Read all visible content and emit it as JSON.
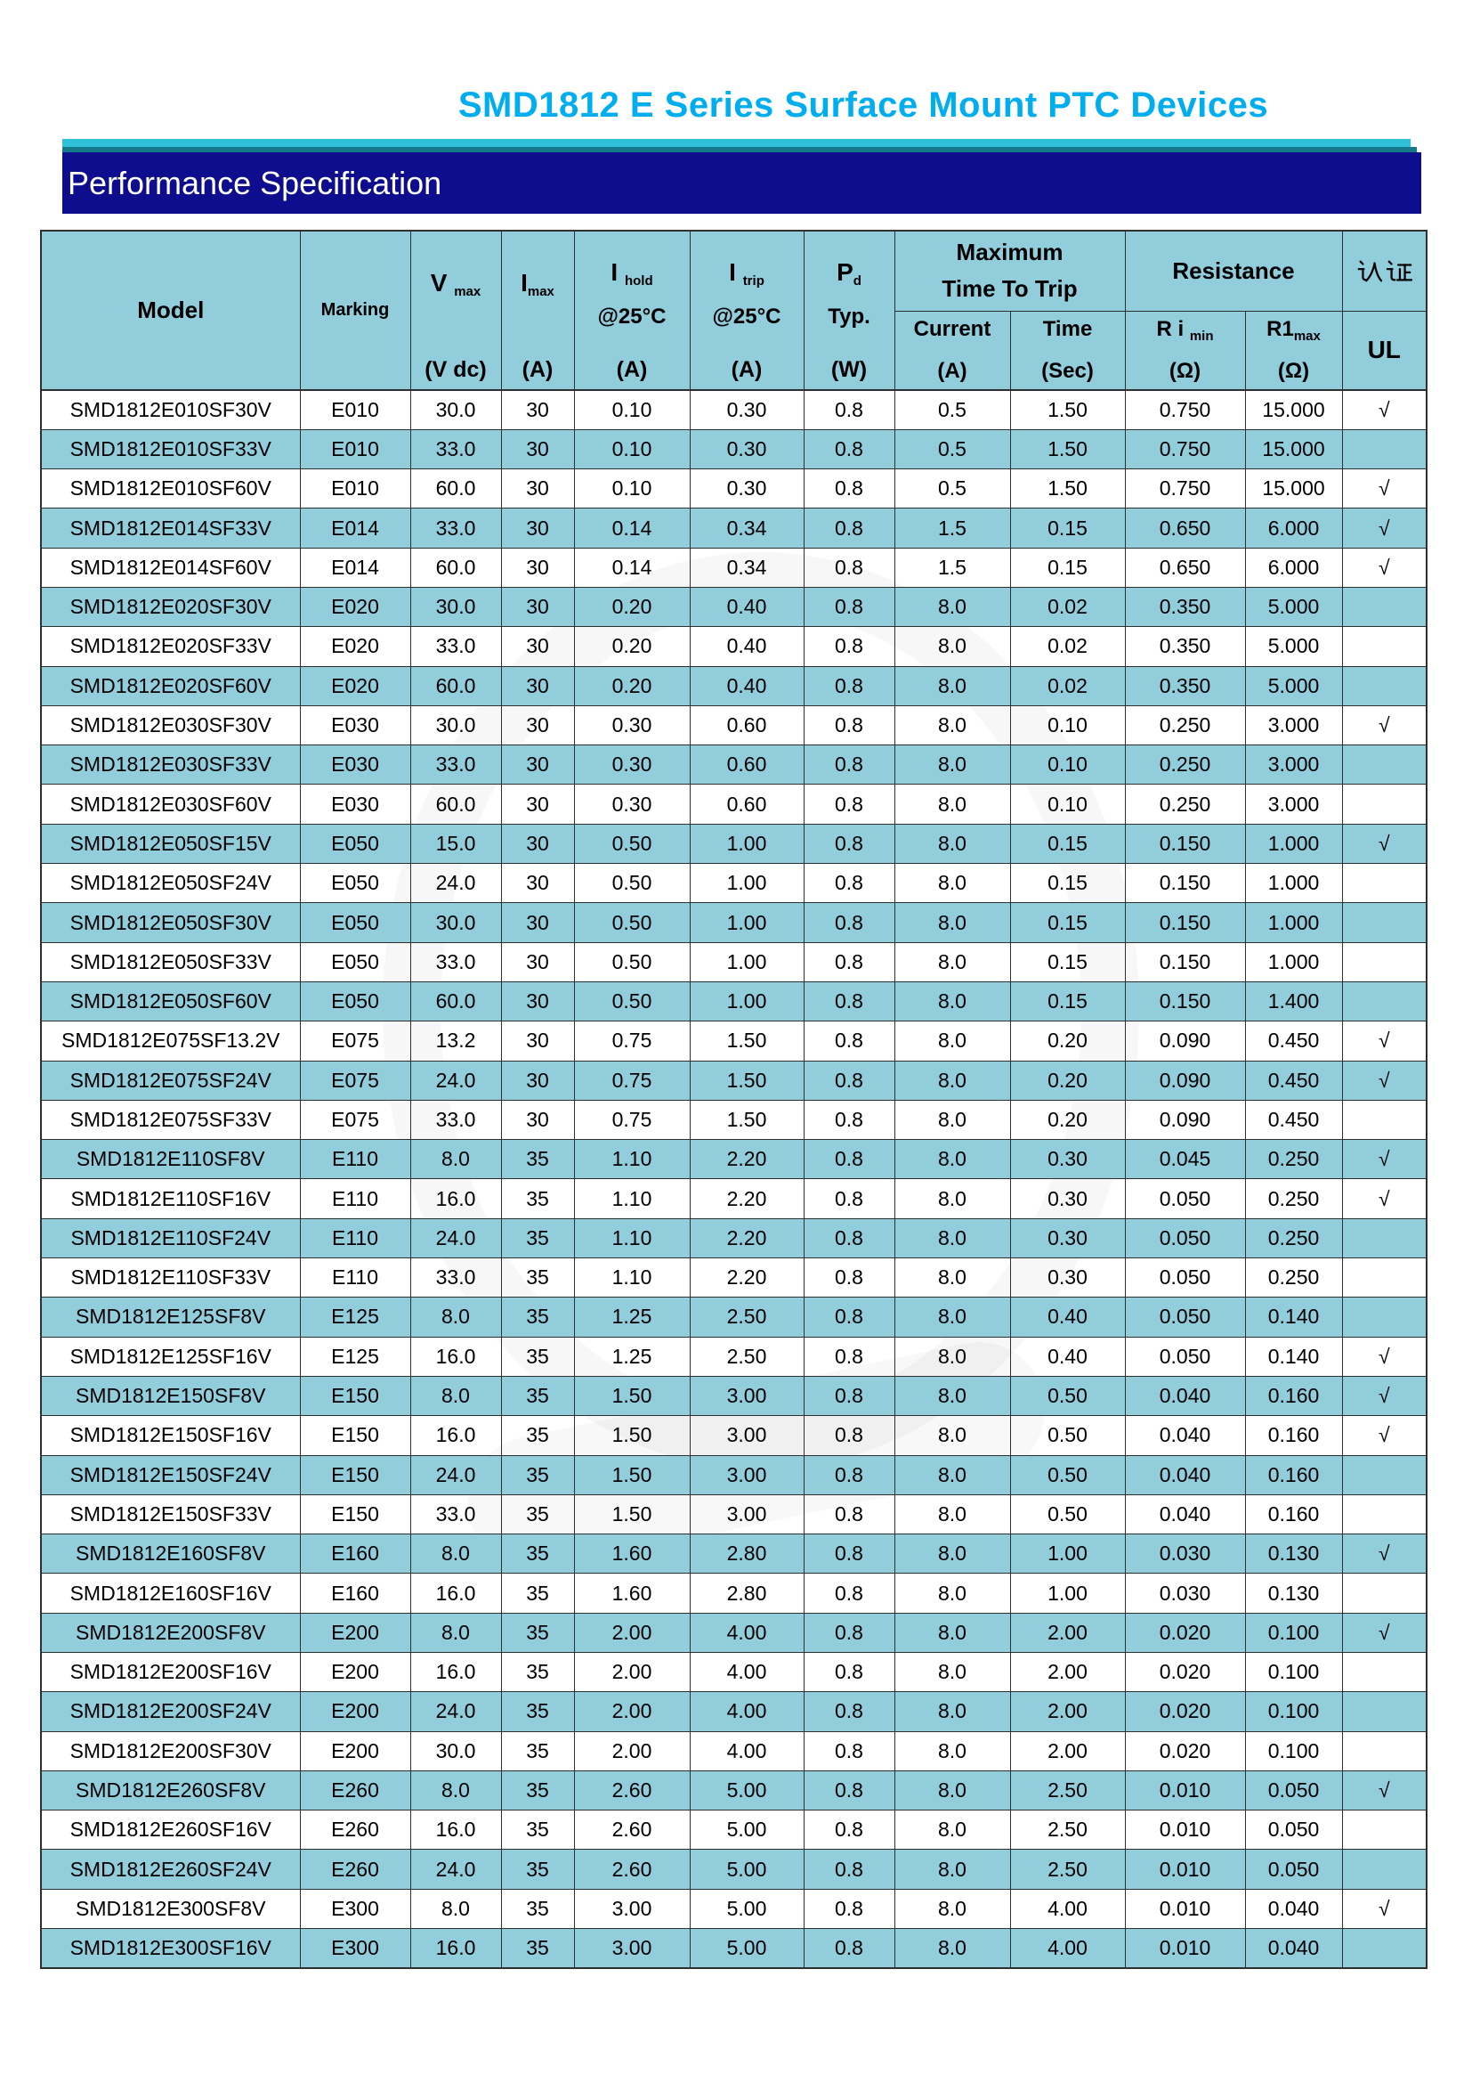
{
  "page": {
    "title": "SMD1812 E Series Surface Mount PTC Devices",
    "section_title": "Performance Specification"
  },
  "colors": {
    "title_cyan": "#00AEEF",
    "banner_navy": "#0D0D8E",
    "accent_bar_cyan": "#2FBFD8",
    "accent_bar_teal": "#15798A",
    "row_alt_blue": "#92CDDC",
    "row_white": "#FFFFFF",
    "grid_line": "#2F2F2F"
  },
  "table": {
    "headers": {
      "model": "Model",
      "marking": "Marking",
      "vmax": {
        "main": "V",
        "sub": "max",
        "unit": "(V dc)"
      },
      "imax": {
        "main": "I",
        "sub": "max",
        "unit": "(A)"
      },
      "ihold": {
        "main": "I",
        "sub": "hold",
        "line2": "@25°C",
        "unit": "(A)"
      },
      "itrip": {
        "main": "I",
        "sub": "trip",
        "line2": "@25°C",
        "unit": "(A)"
      },
      "pd": {
        "main": "P",
        "sub": "d",
        "line2": "Typ.",
        "unit": "(W)"
      },
      "max_time_to_trip": {
        "line1": "Maximum",
        "line2": "Time To Trip"
      },
      "current": {
        "label": "Current",
        "unit": "(A)"
      },
      "time": {
        "label": "Time",
        "unit": "(Sec)"
      },
      "resistance": "Resistance",
      "ri_min": {
        "main": "R i",
        "sub": "min",
        "unit": "(Ω)"
      },
      "r1_max": {
        "main": "R1",
        "sub": "max",
        "unit": "(Ω)"
      },
      "cert": "认证",
      "ul": "UL"
    },
    "check_glyph": "√",
    "column_keys": [
      "model",
      "marking",
      "v-max",
      "i-max",
      "i-hold",
      "i-trip",
      "pd-typ",
      "trip-current",
      "trip-time",
      "ri-min",
      "r1-max",
      "ul"
    ],
    "rows": [
      [
        "SMD1812E010SF30V",
        "E010",
        "30.0",
        "30",
        "0.10",
        "0.30",
        "0.8",
        "0.5",
        "1.50",
        "0.750",
        "15.000",
        "√"
      ],
      [
        "SMD1812E010SF33V",
        "E010",
        "33.0",
        "30",
        "0.10",
        "0.30",
        "0.8",
        "0.5",
        "1.50",
        "0.750",
        "15.000",
        ""
      ],
      [
        "SMD1812E010SF60V",
        "E010",
        "60.0",
        "30",
        "0.10",
        "0.30",
        "0.8",
        "0.5",
        "1.50",
        "0.750",
        "15.000",
        "√"
      ],
      [
        "SMD1812E014SF33V",
        "E014",
        "33.0",
        "30",
        "0.14",
        "0.34",
        "0.8",
        "1.5",
        "0.15",
        "0.650",
        "6.000",
        "√"
      ],
      [
        "SMD1812E014SF60V",
        "E014",
        "60.0",
        "30",
        "0.14",
        "0.34",
        "0.8",
        "1.5",
        "0.15",
        "0.650",
        "6.000",
        "√"
      ],
      [
        "SMD1812E020SF30V",
        "E020",
        "30.0",
        "30",
        "0.20",
        "0.40",
        "0.8",
        "8.0",
        "0.02",
        "0.350",
        "5.000",
        ""
      ],
      [
        "SMD1812E020SF33V",
        "E020",
        "33.0",
        "30",
        "0.20",
        "0.40",
        "0.8",
        "8.0",
        "0.02",
        "0.350",
        "5.000",
        ""
      ],
      [
        "SMD1812E020SF60V",
        "E020",
        "60.0",
        "30",
        "0.20",
        "0.40",
        "0.8",
        "8.0",
        "0.02",
        "0.350",
        "5.000",
        ""
      ],
      [
        "SMD1812E030SF30V",
        "E030",
        "30.0",
        "30",
        "0.30",
        "0.60",
        "0.8",
        "8.0",
        "0.10",
        "0.250",
        "3.000",
        "√"
      ],
      [
        "SMD1812E030SF33V",
        "E030",
        "33.0",
        "30",
        "0.30",
        "0.60",
        "0.8",
        "8.0",
        "0.10",
        "0.250",
        "3.000",
        ""
      ],
      [
        "SMD1812E030SF60V",
        "E030",
        "60.0",
        "30",
        "0.30",
        "0.60",
        "0.8",
        "8.0",
        "0.10",
        "0.250",
        "3.000",
        ""
      ],
      [
        "SMD1812E050SF15V",
        "E050",
        "15.0",
        "30",
        "0.50",
        "1.00",
        "0.8",
        "8.0",
        "0.15",
        "0.150",
        "1.000",
        "√"
      ],
      [
        "SMD1812E050SF24V",
        "E050",
        "24.0",
        "30",
        "0.50",
        "1.00",
        "0.8",
        "8.0",
        "0.15",
        "0.150",
        "1.000",
        ""
      ],
      [
        "SMD1812E050SF30V",
        "E050",
        "30.0",
        "30",
        "0.50",
        "1.00",
        "0.8",
        "8.0",
        "0.15",
        "0.150",
        "1.000",
        ""
      ],
      [
        "SMD1812E050SF33V",
        "E050",
        "33.0",
        "30",
        "0.50",
        "1.00",
        "0.8",
        "8.0",
        "0.15",
        "0.150",
        "1.000",
        ""
      ],
      [
        "SMD1812E050SF60V",
        "E050",
        "60.0",
        "30",
        "0.50",
        "1.00",
        "0.8",
        "8.0",
        "0.15",
        "0.150",
        "1.400",
        ""
      ],
      [
        "SMD1812E075SF13.2V",
        "E075",
        "13.2",
        "30",
        "0.75",
        "1.50",
        "0.8",
        "8.0",
        "0.20",
        "0.090",
        "0.450",
        "√"
      ],
      [
        "SMD1812E075SF24V",
        "E075",
        "24.0",
        "30",
        "0.75",
        "1.50",
        "0.8",
        "8.0",
        "0.20",
        "0.090",
        "0.450",
        "√"
      ],
      [
        "SMD1812E075SF33V",
        "E075",
        "33.0",
        "30",
        "0.75",
        "1.50",
        "0.8",
        "8.0",
        "0.20",
        "0.090",
        "0.450",
        ""
      ],
      [
        "SMD1812E110SF8V",
        "E110",
        "8.0",
        "35",
        "1.10",
        "2.20",
        "0.8",
        "8.0",
        "0.30",
        "0.045",
        "0.250",
        "√"
      ],
      [
        "SMD1812E110SF16V",
        "E110",
        "16.0",
        "35",
        "1.10",
        "2.20",
        "0.8",
        "8.0",
        "0.30",
        "0.050",
        "0.250",
        "√"
      ],
      [
        "SMD1812E110SF24V",
        "E110",
        "24.0",
        "35",
        "1.10",
        "2.20",
        "0.8",
        "8.0",
        "0.30",
        "0.050",
        "0.250",
        ""
      ],
      [
        "SMD1812E110SF33V",
        "E110",
        "33.0",
        "35",
        "1.10",
        "2.20",
        "0.8",
        "8.0",
        "0.30",
        "0.050",
        "0.250",
        ""
      ],
      [
        "SMD1812E125SF8V",
        "E125",
        "8.0",
        "35",
        "1.25",
        "2.50",
        "0.8",
        "8.0",
        "0.40",
        "0.050",
        "0.140",
        ""
      ],
      [
        "SMD1812E125SF16V",
        "E125",
        "16.0",
        "35",
        "1.25",
        "2.50",
        "0.8",
        "8.0",
        "0.40",
        "0.050",
        "0.140",
        "√"
      ],
      [
        "SMD1812E150SF8V",
        "E150",
        "8.0",
        "35",
        "1.50",
        "3.00",
        "0.8",
        "8.0",
        "0.50",
        "0.040",
        "0.160",
        "√"
      ],
      [
        "SMD1812E150SF16V",
        "E150",
        "16.0",
        "35",
        "1.50",
        "3.00",
        "0.8",
        "8.0",
        "0.50",
        "0.040",
        "0.160",
        "√"
      ],
      [
        "SMD1812E150SF24V",
        "E150",
        "24.0",
        "35",
        "1.50",
        "3.00",
        "0.8",
        "8.0",
        "0.50",
        "0.040",
        "0.160",
        ""
      ],
      [
        "SMD1812E150SF33V",
        "E150",
        "33.0",
        "35",
        "1.50",
        "3.00",
        "0.8",
        "8.0",
        "0.50",
        "0.040",
        "0.160",
        ""
      ],
      [
        "SMD1812E160SF8V",
        "E160",
        "8.0",
        "35",
        "1.60",
        "2.80",
        "0.8",
        "8.0",
        "1.00",
        "0.030",
        "0.130",
        "√"
      ],
      [
        "SMD1812E160SF16V",
        "E160",
        "16.0",
        "35",
        "1.60",
        "2.80",
        "0.8",
        "8.0",
        "1.00",
        "0.030",
        "0.130",
        ""
      ],
      [
        "SMD1812E200SF8V",
        "E200",
        "8.0",
        "35",
        "2.00",
        "4.00",
        "0.8",
        "8.0",
        "2.00",
        "0.020",
        "0.100",
        "√"
      ],
      [
        "SMD1812E200SF16V",
        "E200",
        "16.0",
        "35",
        "2.00",
        "4.00",
        "0.8",
        "8.0",
        "2.00",
        "0.020",
        "0.100",
        ""
      ],
      [
        "SMD1812E200SF24V",
        "E200",
        "24.0",
        "35",
        "2.00",
        "4.00",
        "0.8",
        "8.0",
        "2.00",
        "0.020",
        "0.100",
        ""
      ],
      [
        "SMD1812E200SF30V",
        "E200",
        "30.0",
        "35",
        "2.00",
        "4.00",
        "0.8",
        "8.0",
        "2.00",
        "0.020",
        "0.100",
        ""
      ],
      [
        "SMD1812E260SF8V",
        "E260",
        "8.0",
        "35",
        "2.60",
        "5.00",
        "0.8",
        "8.0",
        "2.50",
        "0.010",
        "0.050",
        "√"
      ],
      [
        "SMD1812E260SF16V",
        "E260",
        "16.0",
        "35",
        "2.60",
        "5.00",
        "0.8",
        "8.0",
        "2.50",
        "0.010",
        "0.050",
        ""
      ],
      [
        "SMD1812E260SF24V",
        "E260",
        "24.0",
        "35",
        "2.60",
        "5.00",
        "0.8",
        "8.0",
        "2.50",
        "0.010",
        "0.050",
        ""
      ],
      [
        "SMD1812E300SF8V",
        "E300",
        "8.0",
        "35",
        "3.00",
        "5.00",
        "0.8",
        "8.0",
        "4.00",
        "0.010",
        "0.040",
        "√"
      ],
      [
        "SMD1812E300SF16V",
        "E300",
        "16.0",
        "35",
        "3.00",
        "5.00",
        "0.8",
        "8.0",
        "4.00",
        "0.010",
        "0.040",
        ""
      ]
    ]
  }
}
